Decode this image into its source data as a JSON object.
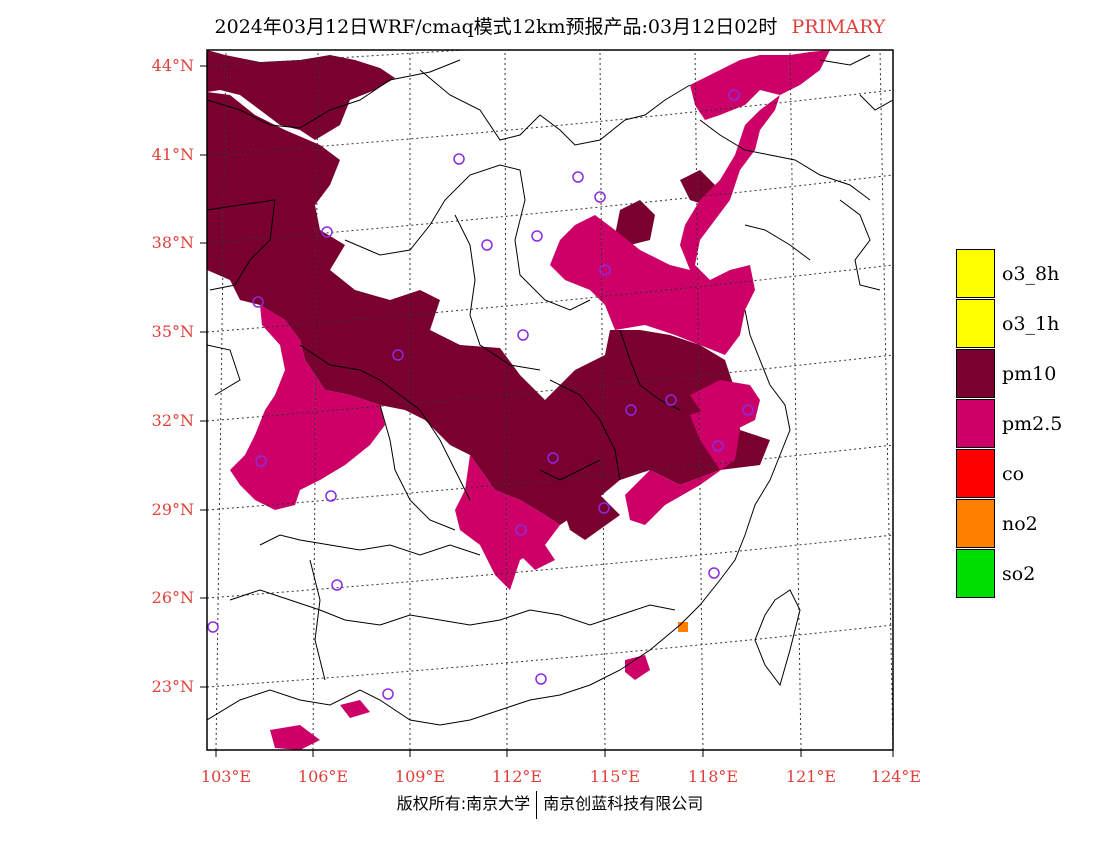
{
  "title": {
    "text": "2024年03月12日WRF/cmaq模式12km预报产品:03月12日02时",
    "tag": "PRIMARY"
  },
  "axes": {
    "lat_labels": [
      "44°N",
      "41°N",
      "38°N",
      "35°N",
      "32°N",
      "29°N",
      "26°N",
      "23°N"
    ],
    "lon_labels": [
      "103°E",
      "106°E",
      "109°E",
      "112°E",
      "115°E",
      "118°E",
      "121°E",
      "124°E"
    ]
  },
  "legend": [
    {
      "label": "o3_8h",
      "color": "#ffff00"
    },
    {
      "label": "o3_1h",
      "color": "#ffff00"
    },
    {
      "label": "pm10",
      "color": "#7a0030"
    },
    {
      "label": "pm2.5",
      "color": "#cc0066"
    },
    {
      "label": "co",
      "color": "#ff0000"
    },
    {
      "label": "no2",
      "color": "#ff8000"
    },
    {
      "label": "so2",
      "color": "#00dd00"
    }
  ],
  "footer": {
    "left": "版权所有:南京大学",
    "right": "南京创蓝科技有限公司"
  },
  "colors": {
    "pm10": "#7a0030",
    "pm25": "#cc0066",
    "no2": "#ff8000",
    "label_red": "#e0403a",
    "station_ring": "#8a2be2"
  },
  "map": {
    "station_icon": "circle-ring-icon",
    "lon_range": [
      103,
      124
    ],
    "lat_range": [
      21,
      44.5
    ]
  }
}
